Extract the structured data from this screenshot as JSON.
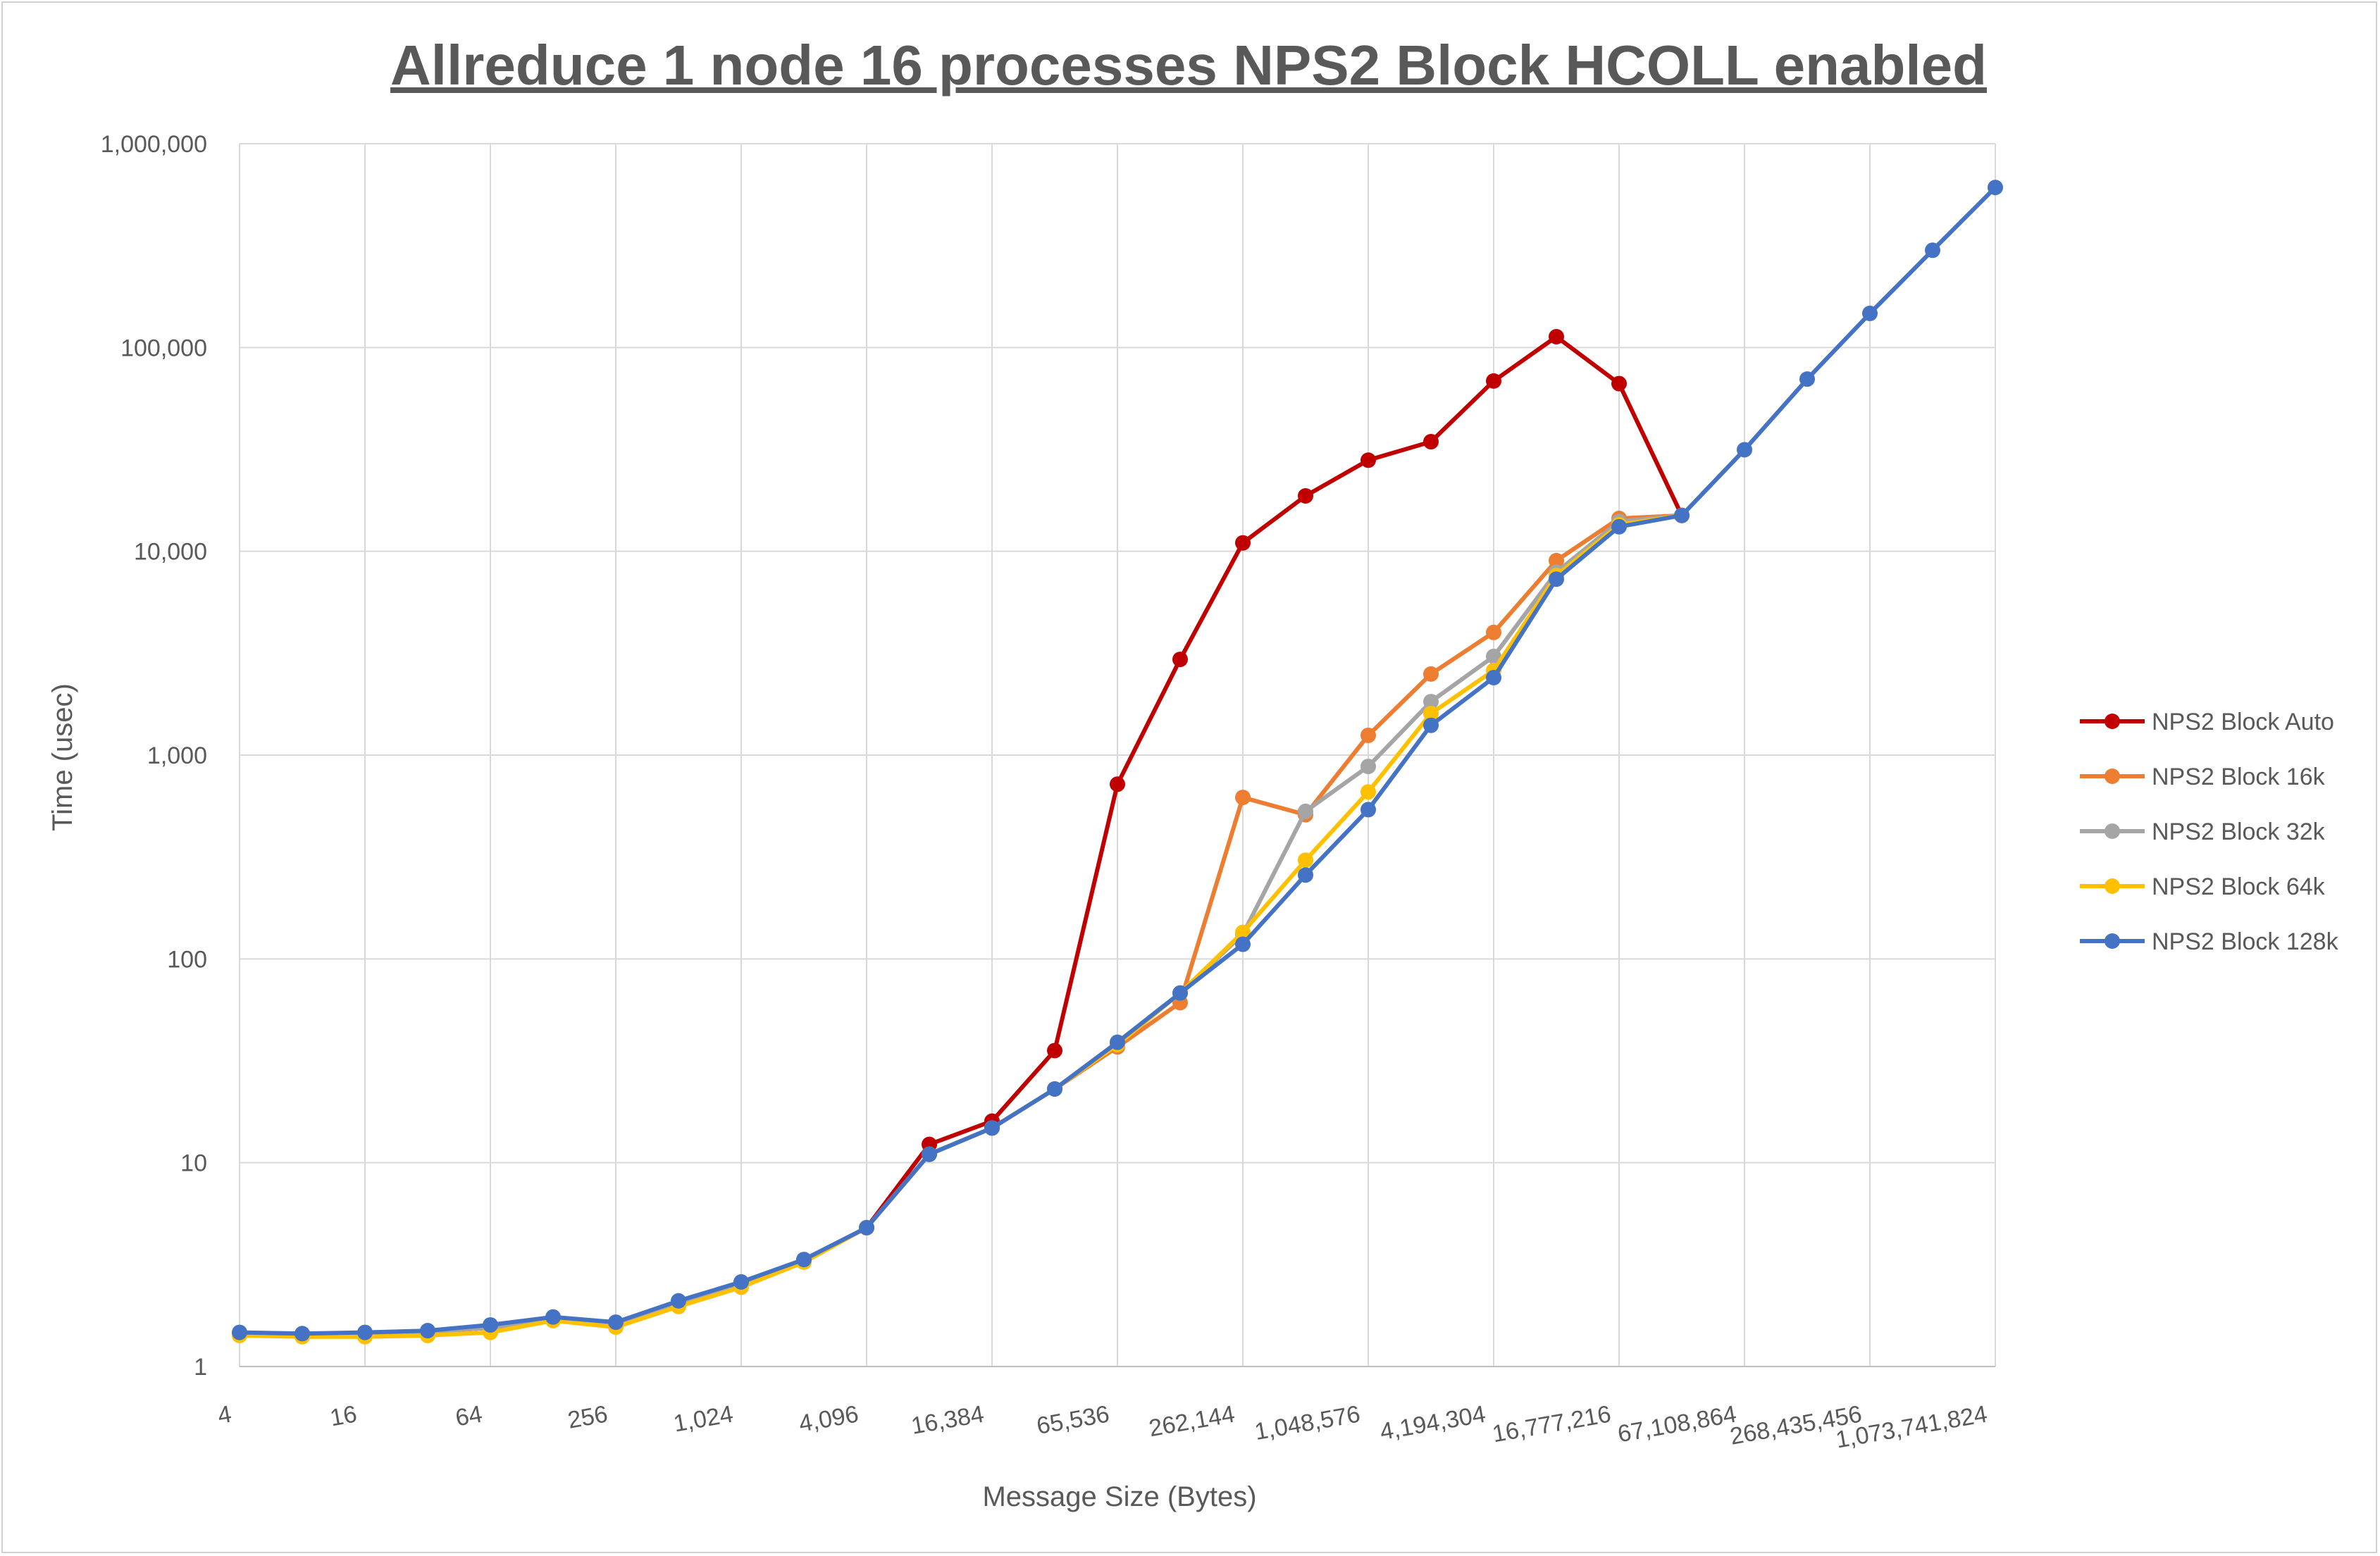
{
  "chart_data": {
    "type": "line",
    "title": "Allreduce 1 node 16 processes NPS2 Block HCOLL enabled",
    "xlabel": "Message Size (Bytes)",
    "ylabel": "Time (usec)",
    "yscale": "log",
    "ylim": [
      1,
      1000000
    ],
    "y_ticks": [
      "1",
      "10",
      "100",
      "1,000",
      "10,000",
      "100,000",
      "1,000,000"
    ],
    "x": [
      4,
      8,
      16,
      32,
      64,
      128,
      256,
      512,
      1024,
      2048,
      4096,
      8192,
      16384,
      32768,
      65536,
      131072,
      262144,
      524288,
      1048576,
      2097152,
      4194304,
      8388608,
      16777216,
      33554432,
      67108864,
      134217728,
      268435456,
      536870912,
      1073741824
    ],
    "x_tick_labels": [
      "4",
      "16",
      "64",
      "256",
      "1,024",
      "4,096",
      "16,384",
      "65,536",
      "262,144",
      "1,048,576",
      "4,194,304",
      "16,777,216",
      "67,108,864",
      "268,435,456",
      "1,073,741,824"
    ],
    "grid": true,
    "legend_position": "right",
    "series": [
      {
        "name": "NPS2 Block Auto",
        "color": "#C00000",
        "values": [
          1.45,
          1.42,
          1.45,
          1.48,
          1.55,
          1.72,
          1.62,
          2.05,
          2.55,
          3.3,
          4.8,
          12.3,
          16.0,
          35.5,
          720,
          2950,
          11000,
          18700,
          28000,
          34500,
          68500,
          113000,
          66500,
          15000,
          null,
          null,
          null,
          null,
          null
        ]
      },
      {
        "name": "NPS2 Block 16k",
        "color": "#ED7D31",
        "values": [
          1.45,
          1.42,
          1.45,
          1.48,
          1.55,
          1.72,
          1.62,
          2.05,
          2.55,
          3.3,
          4.8,
          11.0,
          14.8,
          23.0,
          37.0,
          61.0,
          620,
          510,
          1250,
          2500,
          4000,
          9000,
          14500,
          15000,
          null,
          null,
          null,
          null,
          null
        ]
      },
      {
        "name": "NPS2 Block 32k",
        "color": "#A5A5A5",
        "values": [
          1.45,
          1.42,
          1.45,
          1.48,
          1.55,
          1.72,
          1.62,
          2.05,
          2.55,
          3.3,
          4.8,
          11.0,
          14.8,
          23.0,
          38.0,
          68.0,
          132,
          530,
          880,
          1830,
          3050,
          7900,
          14000,
          15000,
          null,
          null,
          null,
          null,
          null
        ]
      },
      {
        "name": "NPS2 Block 64k",
        "color": "#FFC000",
        "values": [
          1.42,
          1.4,
          1.4,
          1.42,
          1.47,
          1.68,
          1.56,
          1.97,
          2.45,
          3.25,
          4.8,
          11.0,
          14.8,
          23.0,
          38.0,
          68.0,
          135,
          305,
          660,
          1600,
          2600,
          7600,
          13500,
          15000,
          null,
          null,
          null,
          null,
          null
        ]
      },
      {
        "name": "NPS2 Block 128k",
        "color": "#4472C4",
        "values": [
          1.47,
          1.45,
          1.47,
          1.5,
          1.6,
          1.75,
          1.65,
          2.1,
          2.6,
          3.35,
          4.8,
          11.0,
          14.8,
          23.0,
          39.0,
          68.0,
          118,
          258,
          540,
          1400,
          2400,
          7300,
          13200,
          15000,
          31500,
          70000,
          147000,
          300000,
          610000
        ]
      }
    ]
  }
}
